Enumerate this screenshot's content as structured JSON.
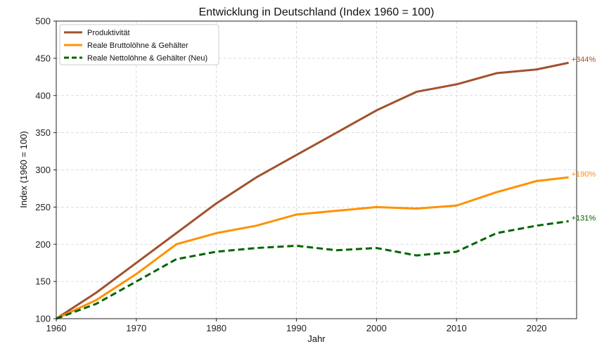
{
  "chart_data": {
    "type": "line",
    "title": "Entwicklung in Deutschland (Index 1960 = 100)",
    "xlabel": "Jahr",
    "ylabel": "Index (1960 = 100)",
    "xlim": [
      1960,
      2025
    ],
    "ylim": [
      100,
      500
    ],
    "x_ticks": [
      1960,
      1970,
      1980,
      1990,
      2000,
      2010,
      2020
    ],
    "y_ticks": [
      100,
      150,
      200,
      250,
      300,
      350,
      400,
      450,
      500
    ],
    "grid": true,
    "legend_position": "top-left",
    "series": [
      {
        "name": "Produktivität",
        "color": "#a0522d",
        "dashed": false,
        "end_label": "+344%",
        "x": [
          1960,
          1965,
          1970,
          1975,
          1980,
          1985,
          1990,
          1995,
          2000,
          2005,
          2010,
          2015,
          2020,
          2024
        ],
        "y": [
          100,
          135,
          175,
          215,
          255,
          290,
          320,
          350,
          380,
          405,
          415,
          430,
          435,
          444
        ]
      },
      {
        "name": "Reale Bruttolöhne & Gehälter",
        "color": "#ff9100",
        "dashed": false,
        "end_label": "+190%",
        "x": [
          1960,
          1965,
          1970,
          1975,
          1980,
          1985,
          1990,
          1995,
          2000,
          2005,
          2010,
          2015,
          2020,
          2024
        ],
        "y": [
          100,
          125,
          160,
          200,
          215,
          225,
          240,
          245,
          250,
          248,
          252,
          270,
          285,
          290
        ]
      },
      {
        "name": "Reale Nettolöhne & Gehälter (Neu)",
        "color": "#006400",
        "dashed": true,
        "end_label": "+131%",
        "x": [
          1960,
          1965,
          1970,
          1975,
          1980,
          1985,
          1990,
          1995,
          2000,
          2005,
          2010,
          2015,
          2020,
          2024
        ],
        "y": [
          100,
          120,
          150,
          180,
          190,
          195,
          198,
          192,
          195,
          185,
          190,
          215,
          225,
          231
        ]
      }
    ]
  }
}
